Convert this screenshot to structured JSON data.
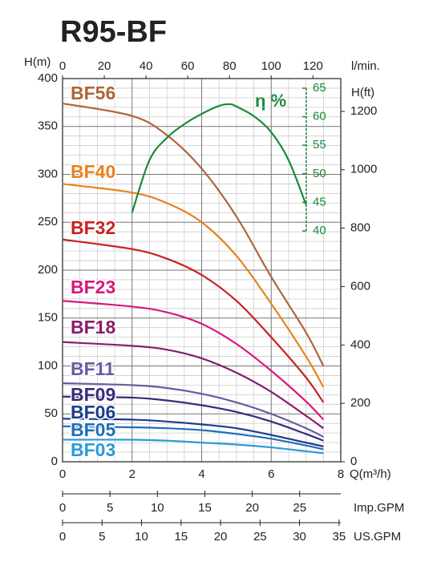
{
  "chart_data": {
    "type": "line",
    "title": "R95-BF",
    "x_label": "Q(m³/h)",
    "y_label": "H(m)",
    "x": [
      0,
      2,
      3,
      4,
      5,
      6,
      7,
      7.5
    ],
    "xlim": [
      0,
      8
    ],
    "xticks": [
      0,
      2,
      4,
      6,
      8
    ],
    "xminorticks": [
      0.5,
      1,
      1.5,
      2.5,
      3,
      3.5,
      4.5,
      5,
      5.5,
      6.5,
      7,
      7.5
    ],
    "ylim": [
      0,
      400
    ],
    "yticks": [
      0,
      50,
      100,
      150,
      200,
      250,
      300,
      350,
      400
    ],
    "yminorticks": [
      10,
      20,
      30,
      40,
      60,
      70,
      80,
      90,
      110,
      120,
      130,
      140,
      160,
      170,
      180,
      190,
      210,
      220,
      230,
      240,
      260,
      270,
      280,
      290,
      310,
      320,
      330,
      340,
      360,
      370,
      380,
      390
    ],
    "grid": true,
    "top_axis": {
      "label": "l/min.",
      "lim": [
        0,
        133.33
      ],
      "ticks": [
        0,
        20,
        40,
        60,
        80,
        100,
        120
      ]
    },
    "right_axis": {
      "label": "H(ft)",
      "lim": [
        0,
        1312.3
      ],
      "ticks": [
        0,
        200,
        400,
        600,
        800,
        1000,
        1200
      ]
    },
    "y2_label": "η %",
    "y2lim": [
      40,
      65
    ],
    "y2ticks": [
      40,
      45,
      50,
      55,
      60,
      65
    ],
    "imp_gpm_axis": {
      "label": "Imp.GPM",
      "lim": [
        0,
        29.33
      ],
      "ticks": [
        0,
        5,
        10,
        15,
        20,
        25
      ]
    },
    "us_gpm_axis": {
      "label": "US.GPM",
      "lim": [
        0,
        35.22
      ],
      "ticks": [
        0,
        5,
        10,
        15,
        20,
        25,
        30,
        35
      ]
    },
    "series": [
      {
        "name": "BF56",
        "color": "#b0653a",
        "values": [
          374,
          361,
          341,
          306,
          256,
          193,
          135,
          100
        ]
      },
      {
        "name": "BF40",
        "color": "#e8821e",
        "values": [
          290,
          281,
          270,
          250,
          215,
          165,
          110,
          78
        ]
      },
      {
        "name": "BF32",
        "color": "#cc2020",
        "values": [
          232,
          222,
          212,
          195,
          168,
          130,
          88,
          62
        ]
      },
      {
        "name": "BF23",
        "color": "#d8187c",
        "values": [
          168,
          162,
          156,
          144,
          123,
          95,
          63,
          44
        ]
      },
      {
        "name": "BF18",
        "color": "#8a1c6c",
        "values": [
          125,
          121,
          117,
          108,
          93,
          73,
          48,
          35
        ]
      },
      {
        "name": "BF11",
        "color": "#6a5aa4",
        "values": [
          82,
          80,
          77,
          71,
          62,
          50,
          35,
          26
        ]
      },
      {
        "name": "BF09",
        "color": "#3a2a7c",
        "values": [
          68,
          67,
          64,
          59,
          52,
          42,
          29,
          22
        ]
      },
      {
        "name": "BF06",
        "color": "#1c3c8c",
        "values": [
          45,
          44,
          42,
          39,
          35,
          28,
          20,
          16
        ]
      },
      {
        "name": "BF05",
        "color": "#1c70b8",
        "values": [
          37,
          36,
          35,
          33,
          29,
          24,
          17,
          13
        ]
      },
      {
        "name": "BF03",
        "color": "#2a9ad8",
        "values": [
          23,
          23,
          22,
          20,
          18,
          15,
          11,
          9
        ]
      }
    ],
    "efficiency": {
      "color": "#1a8a3a",
      "axis": "y2",
      "x": [
        2,
        2.5,
        3,
        3.5,
        4,
        4.5,
        4.8,
        5,
        5.5,
        6,
        6.5,
        7
      ],
      "values": [
        43.2,
        52.4,
        56.3,
        58.7,
        60.5,
        61.9,
        62.2,
        61.8,
        60.1,
        57.3,
        52.4,
        44.6
      ]
    }
  }
}
